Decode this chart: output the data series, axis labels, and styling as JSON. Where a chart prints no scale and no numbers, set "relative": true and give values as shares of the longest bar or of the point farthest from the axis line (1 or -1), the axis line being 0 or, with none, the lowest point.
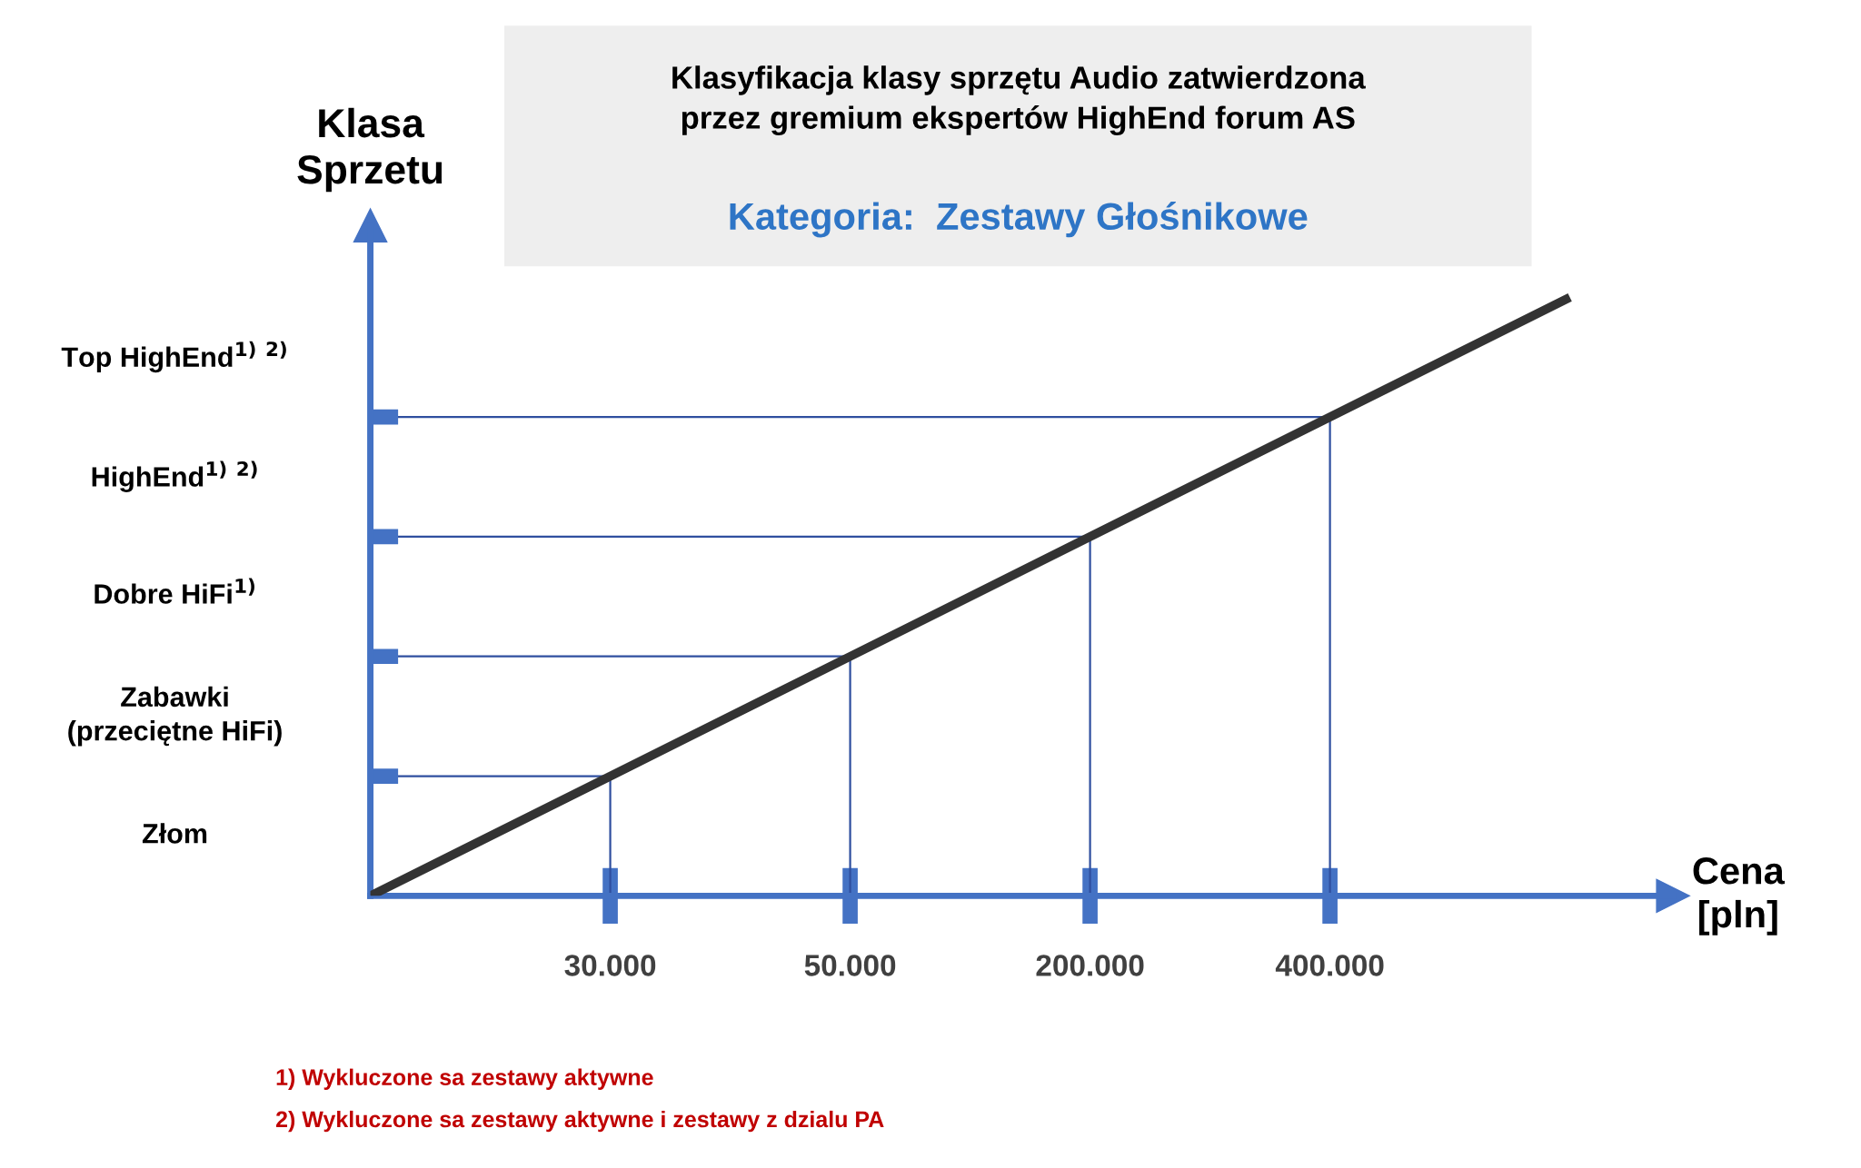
{
  "chart_data": {
    "type": "line",
    "relative": true,
    "title": "Klasyfikacja klasy sprzętu Audio zatwierdzona\nprzez gremium ekspertów HighEnd forum AS",
    "subtitle": "Kategoria:  Zestawy Głośnikowe",
    "xlabel": "Cena\n[pln]",
    "ylabel": "Klasa\nSprzetu",
    "categories": [
      null,
      "30.000",
      "50.000",
      "200.000",
      "400.000",
      null
    ],
    "series": [
      {
        "values": [
          0,
          0.2,
          0.4,
          0.6,
          0.8,
          1
        ],
        "color": "#333333"
      },
      {
        "values": [
          0.2,
          0.2,
          null,
          null,
          null,
          null
        ],
        "color": "#2f4f9f"
      },
      {
        "values": [
          0.4,
          0.4,
          0.4,
          null,
          null,
          null
        ],
        "color": "#2f4f9f"
      },
      {
        "values": [
          0.6,
          0.6,
          0.6,
          0.6,
          null,
          null
        ],
        "color": "#2f4f9f"
      },
      {
        "values": [
          0.8,
          0.8,
          0.8,
          0.8,
          0.8,
          null
        ],
        "color": "#2f4f9f"
      },
      {
        "x": [
          "30.000",
          "30.000"
        ],
        "values": [
          0.2,
          0
        ],
        "color": "#2f4f9f"
      },
      {
        "x": [
          "50.000",
          "50.000"
        ],
        "values": [
          0.4,
          0
        ],
        "color": "#2f4f9f"
      },
      {
        "x": [
          "200.000",
          "200.000"
        ],
        "values": [
          0.6,
          0
        ],
        "color": "#2f4f9f"
      },
      {
        "x": [
          "400.000",
          "400.000"
        ],
        "values": [
          0.8,
          0
        ],
        "color": "#2f4f9f"
      }
    ],
    "annotations": [
      "Złom",
      "Zabawki\n(przeciętne HiFi)",
      "Dobre HiFi$^{1)}$",
      "HighEnd$^{1)}$ $^{2)}$",
      "Top HighEnd$^{1)}$ $^{2)}$",
      "1) Wykluczone sa zestawy aktywne",
      "2) Wykluczone sa zestawy aktywne i zestawy z dzialu PA"
    ]
  }
}
